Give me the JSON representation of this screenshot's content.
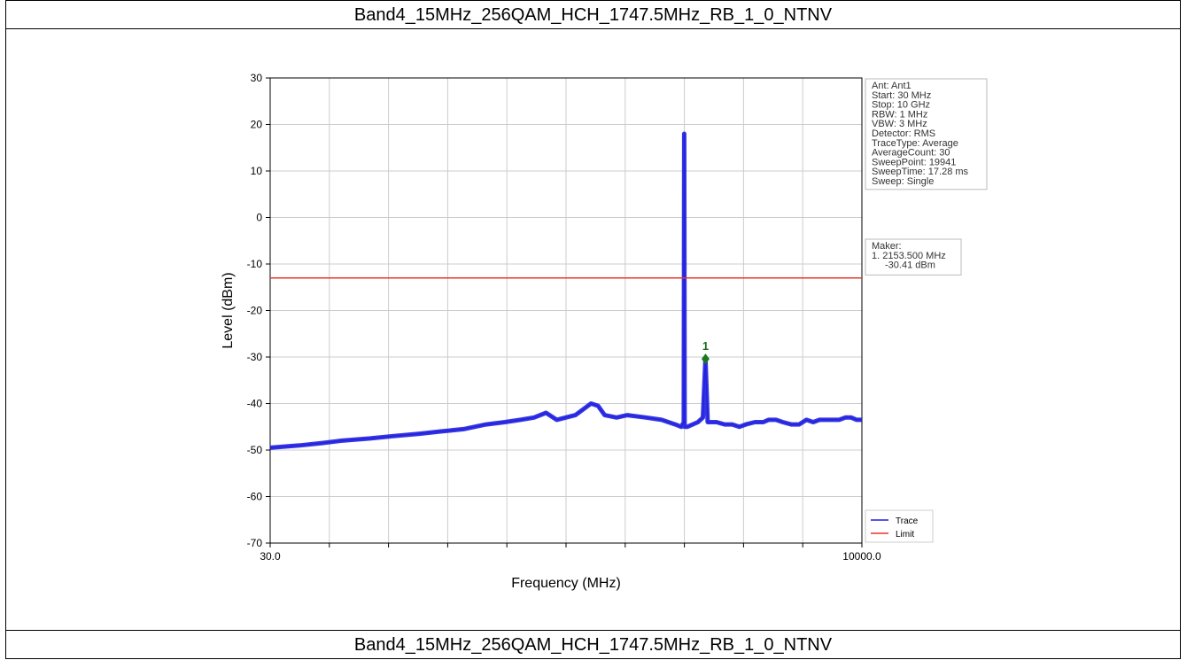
{
  "caption_top": "Band4_15MHz_256QAM_HCH_1747.5MHz_RB_1_0_NTNV",
  "caption_bottom": "Band4_15MHz_256QAM_HCH_1747.5MHz_RB_1_0_NTNV",
  "colors": {
    "trace": "#1f1fe0",
    "limit": "#e8372c",
    "marker": "#1a7a1a",
    "grid": "#cccccc"
  },
  "chart_data": {
    "type": "line",
    "xlabel": "Frequency (MHz)",
    "ylabel": "Level (dBm)",
    "x_scale": "log",
    "xlim": [
      30,
      10000
    ],
    "ylim": [
      -70,
      30
    ],
    "x_tick_labels": [
      "30.0",
      "10000.0"
    ],
    "y_ticks": [
      30,
      20,
      10,
      0,
      -10,
      -20,
      -30,
      -40,
      -50,
      -60,
      -70
    ],
    "grid": true,
    "legend_position": "bottom-right",
    "series": [
      {
        "name": "Trace",
        "x": [
          30,
          40,
          50,
          60,
          80,
          100,
          130,
          160,
          200,
          250,
          300,
          350,
          400,
          450,
          500,
          600,
          700,
          750,
          800,
          900,
          1000,
          1200,
          1400,
          1600,
          1700,
          1740,
          1747.5,
          1755,
          1800,
          2000,
          2100,
          2153.5,
          2200,
          2400,
          2600,
          2800,
          3000,
          3200,
          3500,
          3800,
          4000,
          4300,
          4600,
          5000,
          5400,
          5800,
          6200,
          6600,
          7000,
          7500,
          8000,
          8500,
          9000,
          9500,
          10000
        ],
        "y": [
          -49.5,
          -49,
          -48.5,
          -48,
          -47.5,
          -47,
          -46.5,
          -46,
          -45.5,
          -44.5,
          -44,
          -43.5,
          -43,
          -42,
          -43.5,
          -42.5,
          -40,
          -40.5,
          -42.5,
          -43,
          -42.5,
          -43,
          -43.5,
          -44.5,
          -45,
          -44,
          18,
          -45,
          -45,
          -44,
          -43,
          -30.4,
          -44,
          -44,
          -44.5,
          -44.5,
          -45,
          -44.5,
          -44,
          -44,
          -43.5,
          -43.5,
          -44,
          -44.5,
          -44.5,
          -43.5,
          -44,
          -43.5,
          -43.5,
          -43.5,
          -43.5,
          -43,
          -43,
          -43.5,
          -43.5
        ]
      },
      {
        "name": "Limit",
        "x": [
          30,
          10000
        ],
        "y": [
          -13,
          -13
        ]
      }
    ],
    "marker": {
      "label": "1",
      "x": 2153.5,
      "y": -30.41
    },
    "settings_box": [
      "Ant: Ant1",
      "Start: 30 MHz",
      "Stop: 10 GHz",
      "RBW: 1 MHz",
      "VBW: 3 MHz",
      "Detector: RMS",
      "TraceType: Average",
      "AverageCount: 30",
      "SweepPoint: 19941",
      "SweepTime: 17.28 ms",
      "Sweep: Single"
    ],
    "marker_box": [
      "Maker:",
      "1. 2153.500 MHz",
      "-30.41 dBm"
    ]
  }
}
